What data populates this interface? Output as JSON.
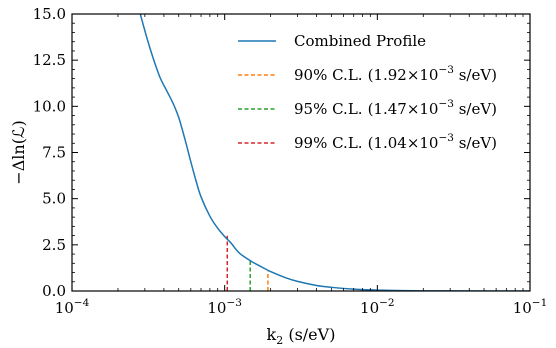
{
  "chart_data": {
    "type": "line",
    "xscale": "log",
    "xlim": [
      0.0001,
      0.1
    ],
    "ylim": [
      0.0,
      15.0
    ],
    "xlabel": "k",
    "xlabel_sub": "2",
    "xlabel_unit": " (s/eV)",
    "ylabel": "−Δln(ℒ)",
    "xticks": [
      {
        "value": 0.0001,
        "base": "10",
        "exp": "−4"
      },
      {
        "value": 0.001,
        "base": "10",
        "exp": "−3"
      },
      {
        "value": 0.01,
        "base": "10",
        "exp": "−2"
      },
      {
        "value": 0.1,
        "base": "10",
        "exp": "−1"
      }
    ],
    "yticks": [
      {
        "value": 0,
        "label": "0.0"
      },
      {
        "value": 2.5,
        "label": "2.5"
      },
      {
        "value": 5,
        "label": "5.0"
      },
      {
        "value": 7.5,
        "label": "7.5"
      },
      {
        "value": 10,
        "label": "10.0"
      },
      {
        "value": 12.5,
        "label": "12.5"
      },
      {
        "value": 15,
        "label": "15.0"
      }
    ],
    "series": [
      {
        "name": "Combined Profile",
        "color": "#1f77b4",
        "x": [
          0.00028,
          0.0003,
          0.00032,
          0.00035,
          0.00038,
          0.00042,
          0.00046,
          0.0005,
          0.00055,
          0.0006,
          0.00065,
          0.0007,
          0.0008,
          0.0009,
          0.001,
          0.0011,
          0.00125,
          0.0015,
          0.00175,
          0.002,
          0.0025,
          0.003,
          0.004,
          0.005,
          0.007,
          0.01,
          0.015,
          0.02,
          0.03,
          0.05,
          0.1
        ],
        "y": [
          15.0,
          14.1,
          13.3,
          12.3,
          11.5,
          10.8,
          10.15,
          9.4,
          8.2,
          7.0,
          5.95,
          5.1,
          4.05,
          3.4,
          2.95,
          2.6,
          2.05,
          1.6,
          1.3,
          1.05,
          0.72,
          0.52,
          0.3,
          0.2,
          0.1,
          0.05,
          0.02,
          0.01,
          0.005,
          0.002,
          0.001
        ]
      }
    ],
    "limits": [
      {
        "label": "90% C.L.",
        "value_text": "(1.92×10",
        "exp": "−3",
        "unit": " s/eV)",
        "x": 0.00192,
        "y": 1.08,
        "color": "#ff7f0e"
      },
      {
        "label": "95% C.L.",
        "value_text": "(1.47×10",
        "exp": "−3",
        "unit": " s/eV)",
        "x": 0.00147,
        "y": 1.65,
        "color": "#2ca02c"
      },
      {
        "label": "99% C.L.",
        "value_text": "(1.04×10",
        "exp": "−3",
        "unit": " s/eV)",
        "x": 0.00104,
        "y": 2.99,
        "color": "#d62728"
      }
    ],
    "legend_position": "top-right",
    "grid": false
  }
}
